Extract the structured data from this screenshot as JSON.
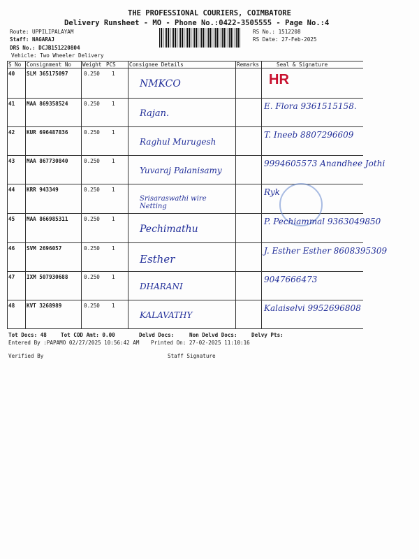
{
  "header": {
    "company": "THE PROFESSIONAL COURIERS, COIMBATORE",
    "subtitle": "Delivery Runsheet - MO - Phone No.:0422-3505555 - Page No.:4",
    "route": "Route: UPPILIPALAYAM",
    "staff": "Staff: NAGARAJ",
    "drs_no": "DRS No.: DCJB151220804",
    "vehicle": "Vehicle: Two Wheeler Delivery",
    "rs_no": "RS No.: 1512208",
    "rs_date": "RS Date: 27-Feb-2025"
  },
  "table": {
    "columns": [
      "S No",
      "Consignment No",
      "Weight",
      "PCS",
      "Consignee Details",
      "Remarks",
      "Seal & Signature"
    ],
    "rows": [
      {
        "sno": "40",
        "cn": "SLM 365175097",
        "weight": "0.250",
        "pcs": "1",
        "consignee": "NMKCO",
        "signature": "HR"
      },
      {
        "sno": "41",
        "cn": "MAA 869358524",
        "weight": "0.250",
        "pcs": "1",
        "consignee": "Rajan.",
        "signature": "E. Flora 9361515158."
      },
      {
        "sno": "42",
        "cn": "KUR 696487836",
        "weight": "0.250",
        "pcs": "1",
        "consignee": "Raghul Murugesh",
        "signature": "T. Ineeb 8807296609"
      },
      {
        "sno": "43",
        "cn": "MAA 867730840",
        "weight": "0.250",
        "pcs": "1",
        "consignee": "Yuvaraj Palanisamy",
        "signature": "9994605573 Anandhee Jothi"
      },
      {
        "sno": "44",
        "cn": "KRR 943349",
        "weight": "0.250",
        "pcs": "1",
        "consignee": "Srisaraswathi wire Netting",
        "signature": "Ryk"
      },
      {
        "sno": "45",
        "cn": "MAA 866985311",
        "weight": "0.250",
        "pcs": "1",
        "consignee": "Pechimathu",
        "signature": "P. Pechiammal 9363049850"
      },
      {
        "sno": "46",
        "cn": "SVM 2696057",
        "weight": "0.250",
        "pcs": "1",
        "consignee": "Esther",
        "signature": "J. Esther Esther 8608395309"
      },
      {
        "sno": "47",
        "cn": "IXM 507930688",
        "weight": "0.250",
        "pcs": "1",
        "consignee": "DHARANI",
        "signature": "9047666473"
      },
      {
        "sno": "48",
        "cn": "KVT 3268989",
        "weight": "0.250",
        "pcs": "1",
        "consignee": "KALAVATHY",
        "signature": "Kalaiselvi 9952696808"
      }
    ]
  },
  "footer": {
    "tot_docs": "Tot Docs:  48",
    "tot_cod": "Tot COD Amt:    0.00",
    "delvd": "Delvd Docs:",
    "non_delvd": "Non Delvd Docs:",
    "delvy_pts": "Delvy Pts:",
    "entered_by": "Entered By :PAPAMO 02/27/2025 10:56:42 AM",
    "printed_on": "Printed On: 27-02-2025 11:10:16",
    "verified_by": "Verified By",
    "staff_signature": "Staff Signature"
  }
}
